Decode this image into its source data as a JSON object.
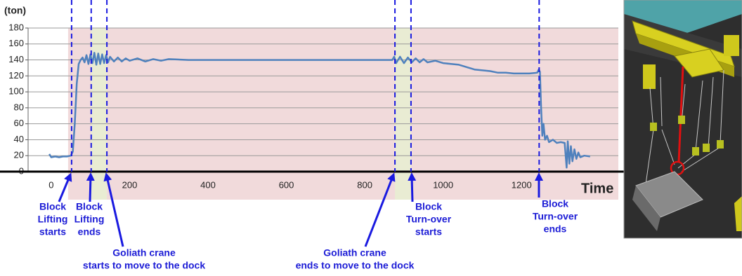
{
  "chart_data": {
    "type": "line",
    "y_label": "(ton)",
    "x_label": "Time",
    "xlim": [
      -59,
      1447
    ],
    "ylim": [
      0,
      180
    ],
    "xticks": [
      0,
      200,
      400,
      600,
      800,
      1000,
      1200
    ],
    "yticks": [
      0,
      20,
      40,
      60,
      80,
      100,
      120,
      140,
      160,
      180
    ],
    "grid": true,
    "background_band": {
      "range": [
        43,
        1447
      ],
      "color": "#f1dadb"
    },
    "bands": [
      {
        "range": [
          102,
          142
        ],
        "color": "#e9ecd3"
      },
      {
        "range": [
          877,
          918
        ],
        "color": "#e9ecd3"
      }
    ],
    "markers": [
      52,
      102,
      142,
      877,
      918,
      1245
    ],
    "marker_color": "#1a1ae0",
    "series": [
      {
        "color": "#4f81bd",
        "x": [
          -5,
          0,
          10,
          20,
          30,
          40,
          50,
          55,
          60,
          65,
          70,
          75,
          80,
          85,
          90,
          95,
          100,
          105,
          110,
          115,
          120,
          125,
          130,
          135,
          140,
          145,
          150,
          160,
          170,
          180,
          190,
          200,
          220,
          240,
          260,
          280,
          300,
          350,
          400,
          450,
          500,
          550,
          600,
          650,
          700,
          750,
          800,
          850,
          870,
          875,
          880,
          890,
          900,
          910,
          920,
          930,
          940,
          950,
          960,
          980,
          1000,
          1020,
          1040,
          1060,
          1080,
          1100,
          1120,
          1140,
          1160,
          1180,
          1200,
          1220,
          1240,
          1244,
          1247,
          1250,
          1253,
          1256,
          1260,
          1265,
          1270,
          1280,
          1290,
          1300,
          1310,
          1315,
          1318,
          1322,
          1326,
          1330,
          1335,
          1340,
          1345,
          1350,
          1360,
          1375
        ],
        "values": [
          22,
          18,
          19,
          18,
          19,
          19,
          20,
          25,
          60,
          110,
          135,
          140,
          143,
          137,
          146,
          135,
          147,
          136,
          149,
          134,
          148,
          135,
          147,
          136,
          146,
          137,
          144,
          138,
          143,
          138,
          142,
          139,
          142,
          138,
          141,
          139,
          141,
          140,
          140,
          140,
          140,
          140,
          140,
          140,
          140,
          140,
          140,
          140,
          140,
          144,
          136,
          144,
          136,
          143,
          137,
          142,
          137,
          141,
          137,
          139,
          136,
          135,
          134,
          131,
          128,
          127,
          126,
          124,
          124,
          123,
          123,
          123,
          124,
          128,
          125,
          80,
          45,
          60,
          40,
          45,
          37,
          40,
          36,
          37,
          36,
          5,
          38,
          10,
          32,
          13,
          28,
          16,
          24,
          18,
          20,
          19
        ]
      }
    ]
  },
  "annotations": [
    {
      "lines": [
        "Block",
        "Lifting",
        "starts"
      ]
    },
    {
      "lines": [
        "Block",
        "Lifting",
        "ends"
      ]
    },
    {
      "lines": [
        "Goliath crane",
        "starts to move to the dock"
      ]
    },
    {
      "lines": [
        "Goliath crane",
        "ends to move to the dock"
      ]
    },
    {
      "lines": [
        "Block",
        "Turn-over",
        "starts"
      ]
    },
    {
      "lines": [
        "Block",
        "Turn-over",
        "ends"
      ]
    }
  ]
}
